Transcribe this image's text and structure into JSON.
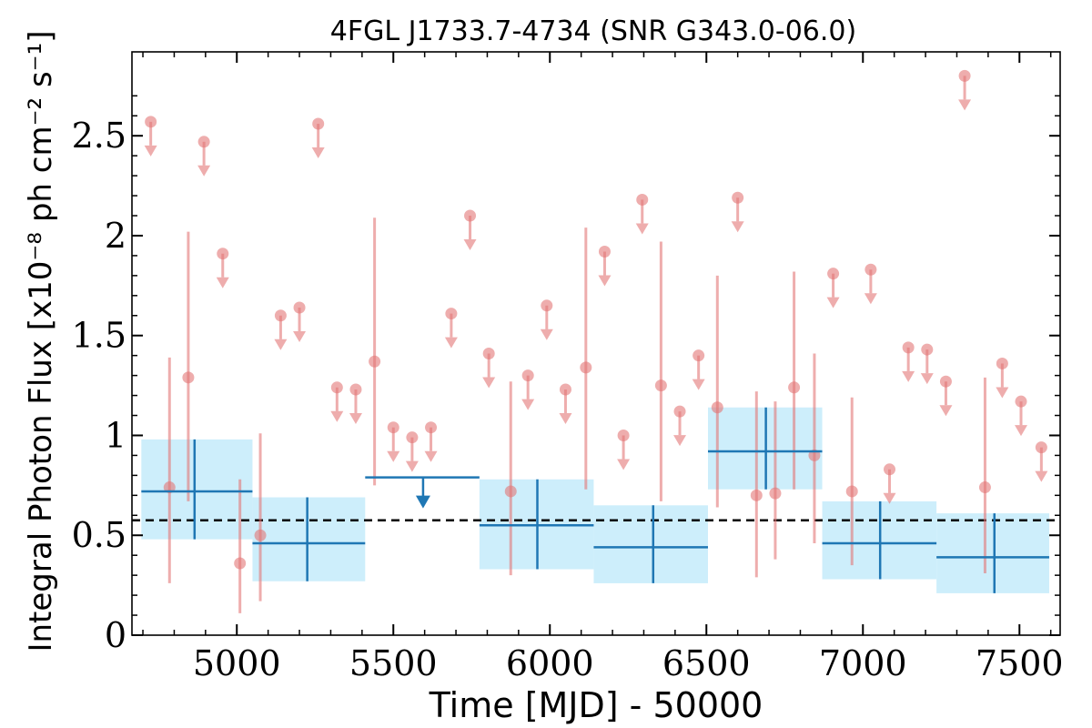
{
  "chart_data": {
    "type": "scatter",
    "title": "4FGL J1733.7-4734 (SNR G343.0-06.0)",
    "xlabel": "Time [MJD] - 50000",
    "ylabel": "Integral Photon Flux [x10⁻⁸ ph cm⁻² s⁻¹]",
    "xlim": [
      4665,
      7630
    ],
    "ylim": [
      0,
      2.92
    ],
    "x_ticks": [
      5000,
      5500,
      6000,
      6500,
      7000,
      7500
    ],
    "x_tick_labels": [
      "5000",
      "5500",
      "6000",
      "6500",
      "7000",
      "7500"
    ],
    "y_ticks": [
      0,
      0.5,
      1,
      1.5,
      2,
      2.5
    ],
    "y_tick_labels": [
      "0",
      "0.5",
      "1",
      "1.5",
      "2",
      "2.5"
    ],
    "mean_flux": 0.575,
    "colors": {
      "fine_bins": "#e37777",
      "coarse_bins": "#1f77b4",
      "coarse_band": "#cdeefb",
      "mean_line": "#000000"
    },
    "fine_bins_detections": [
      {
        "x": 4785,
        "y": 0.74,
        "ylo": 0.26,
        "yhi": 1.39
      },
      {
        "x": 4845,
        "y": 1.29,
        "ylo": 0.67,
        "yhi": 2.02
      },
      {
        "x": 5010,
        "y": 0.36,
        "ylo": 0.11,
        "yhi": 0.78
      },
      {
        "x": 5075,
        "y": 0.5,
        "ylo": 0.17,
        "yhi": 1.01
      },
      {
        "x": 5440,
        "y": 1.37,
        "ylo": 0.75,
        "yhi": 2.09
      },
      {
        "x": 5875,
        "y": 0.72,
        "ylo": 0.3,
        "yhi": 1.27
      },
      {
        "x": 6115,
        "y": 1.34,
        "ylo": 0.73,
        "yhi": 2.04
      },
      {
        "x": 6355,
        "y": 1.25,
        "ylo": 0.67,
        "yhi": 1.97
      },
      {
        "x": 6535,
        "y": 1.14,
        "ylo": 0.64,
        "yhi": 1.8
      },
      {
        "x": 6660,
        "y": 0.7,
        "ylo": 0.29,
        "yhi": 1.22
      },
      {
        "x": 6720,
        "y": 0.71,
        "ylo": 0.38,
        "yhi": 1.17
      },
      {
        "x": 6780,
        "y": 1.24,
        "ylo": 0.73,
        "yhi": 1.82
      },
      {
        "x": 6845,
        "y": 0.9,
        "ylo": 0.46,
        "yhi": 1.41
      },
      {
        "x": 6965,
        "y": 0.72,
        "ylo": 0.35,
        "yhi": 1.19
      },
      {
        "x": 7390,
        "y": 0.74,
        "ylo": 0.31,
        "yhi": 1.29
      }
    ],
    "fine_bins_upper_limits": [
      {
        "x": 4725,
        "y": 2.57
      },
      {
        "x": 4895,
        "y": 2.47
      },
      {
        "x": 4955,
        "y": 1.91
      },
      {
        "x": 5140,
        "y": 1.6
      },
      {
        "x": 5200,
        "y": 1.64
      },
      {
        "x": 5260,
        "y": 2.56
      },
      {
        "x": 5320,
        "y": 1.24
      },
      {
        "x": 5380,
        "y": 1.23
      },
      {
        "x": 5500,
        "y": 1.04
      },
      {
        "x": 5560,
        "y": 0.99
      },
      {
        "x": 5620,
        "y": 1.04
      },
      {
        "x": 5685,
        "y": 1.61
      },
      {
        "x": 5745,
        "y": 2.1
      },
      {
        "x": 5805,
        "y": 1.41
      },
      {
        "x": 5930,
        "y": 1.3
      },
      {
        "x": 5990,
        "y": 1.65
      },
      {
        "x": 6050,
        "y": 1.23
      },
      {
        "x": 6175,
        "y": 1.92
      },
      {
        "x": 6235,
        "y": 1.0
      },
      {
        "x": 6295,
        "y": 2.18
      },
      {
        "x": 6415,
        "y": 1.12
      },
      {
        "x": 6475,
        "y": 1.4
      },
      {
        "x": 6600,
        "y": 2.19
      },
      {
        "x": 6905,
        "y": 1.81
      },
      {
        "x": 7025,
        "y": 1.83
      },
      {
        "x": 7085,
        "y": 0.83
      },
      {
        "x": 7145,
        "y": 1.44
      },
      {
        "x": 7205,
        "y": 1.43
      },
      {
        "x": 7265,
        "y": 1.27
      },
      {
        "x": 7325,
        "y": 2.8
      },
      {
        "x": 7445,
        "y": 1.36
      },
      {
        "x": 7505,
        "y": 1.17
      },
      {
        "x": 7570,
        "y": 0.94
      }
    ],
    "coarse_bins_detections": [
      {
        "x": 4865,
        "xlo": 4695,
        "xhi": 5050,
        "y": 0.72,
        "ylo": 0.48,
        "yhi": 0.98
      },
      {
        "x": 5225,
        "xlo": 5050,
        "xhi": 5410,
        "y": 0.46,
        "ylo": 0.27,
        "yhi": 0.69
      },
      {
        "x": 5960,
        "xlo": 5775,
        "xhi": 6140,
        "y": 0.55,
        "ylo": 0.33,
        "yhi": 0.78
      },
      {
        "x": 6330,
        "xlo": 6140,
        "xhi": 6505,
        "y": 0.44,
        "ylo": 0.26,
        "yhi": 0.65
      },
      {
        "x": 6690,
        "xlo": 6505,
        "xhi": 6870,
        "y": 0.92,
        "ylo": 0.73,
        "yhi": 1.14
      },
      {
        "x": 7055,
        "xlo": 6870,
        "xhi": 7235,
        "y": 0.46,
        "ylo": 0.28,
        "yhi": 0.67
      },
      {
        "x": 7420,
        "xlo": 7235,
        "xhi": 7595,
        "y": 0.39,
        "ylo": 0.21,
        "yhi": 0.61
      }
    ],
    "coarse_bins_upper_limits": [
      {
        "x": 5595,
        "xlo": 5410,
        "xhi": 5775,
        "y": 0.79
      }
    ]
  }
}
